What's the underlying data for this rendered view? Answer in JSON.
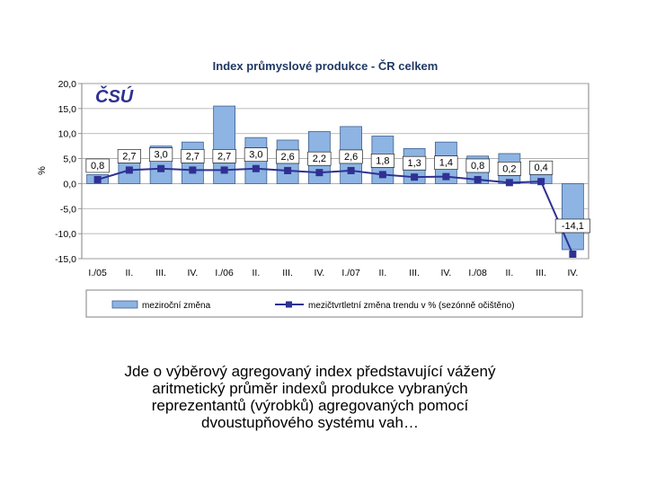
{
  "chart_data": {
    "type": "bar",
    "title": "Index průmyslové produkce -  ČR celkem",
    "ylabel": "%",
    "xlabel": "",
    "ylim": [
      -15,
      20
    ],
    "yticks": [
      "20,0",
      "15,0",
      "10,0",
      "5,0",
      "0,0",
      "-5,0",
      "-10,0",
      "-15,0"
    ],
    "ytick_values": [
      20,
      15,
      10,
      5,
      0,
      -5,
      -10,
      -15
    ],
    "grid": true,
    "legend_position": "bottom",
    "categories": [
      "I./05",
      "II.",
      "III.",
      "IV.",
      "I./06",
      "II.",
      "III.",
      "IV.",
      "I./07",
      "II.",
      "III.",
      "IV.",
      "I./08",
      "II.",
      "III.",
      "IV."
    ],
    "series": [
      {
        "name": "meziroční změna",
        "type": "bar",
        "color": "#8db4e2",
        "values": [
          1.8,
          6.5,
          7.5,
          8.3,
          15.5,
          9.2,
          8.7,
          10.4,
          11.4,
          9.5,
          7.0,
          8.3,
          5.5,
          6.0,
          4.2,
          -13.2
        ]
      },
      {
        "name": "mezičtvrtletní změna trendu v % (sezónně očištěno)",
        "type": "line",
        "color": "#2e3192",
        "values": [
          0.8,
          2.7,
          3.0,
          2.7,
          2.7,
          3.0,
          2.6,
          2.2,
          2.6,
          1.8,
          1.3,
          1.4,
          0.8,
          0.2,
          0.4,
          -14.1
        ],
        "labels": [
          "0,8",
          "2,7",
          "3,0",
          "2,7",
          "2,7",
          "3,0",
          "2,6",
          "2,2",
          "2,6",
          "1,8",
          "1,3",
          "1,4",
          "0,8",
          "0,2",
          "0,4",
          "-14,1"
        ]
      }
    ]
  },
  "logo": {
    "text": "ČSÚ",
    "color": "#2e3192"
  },
  "caption": {
    "lines": [
      "Jde o výběrový agregovaný index představující vážený",
      "aritmetický průměr indexů produkce vybraných",
      "reprezentantů (výrobků) agregovaných pomocí",
      "dvoustupňového systému vah…"
    ]
  }
}
